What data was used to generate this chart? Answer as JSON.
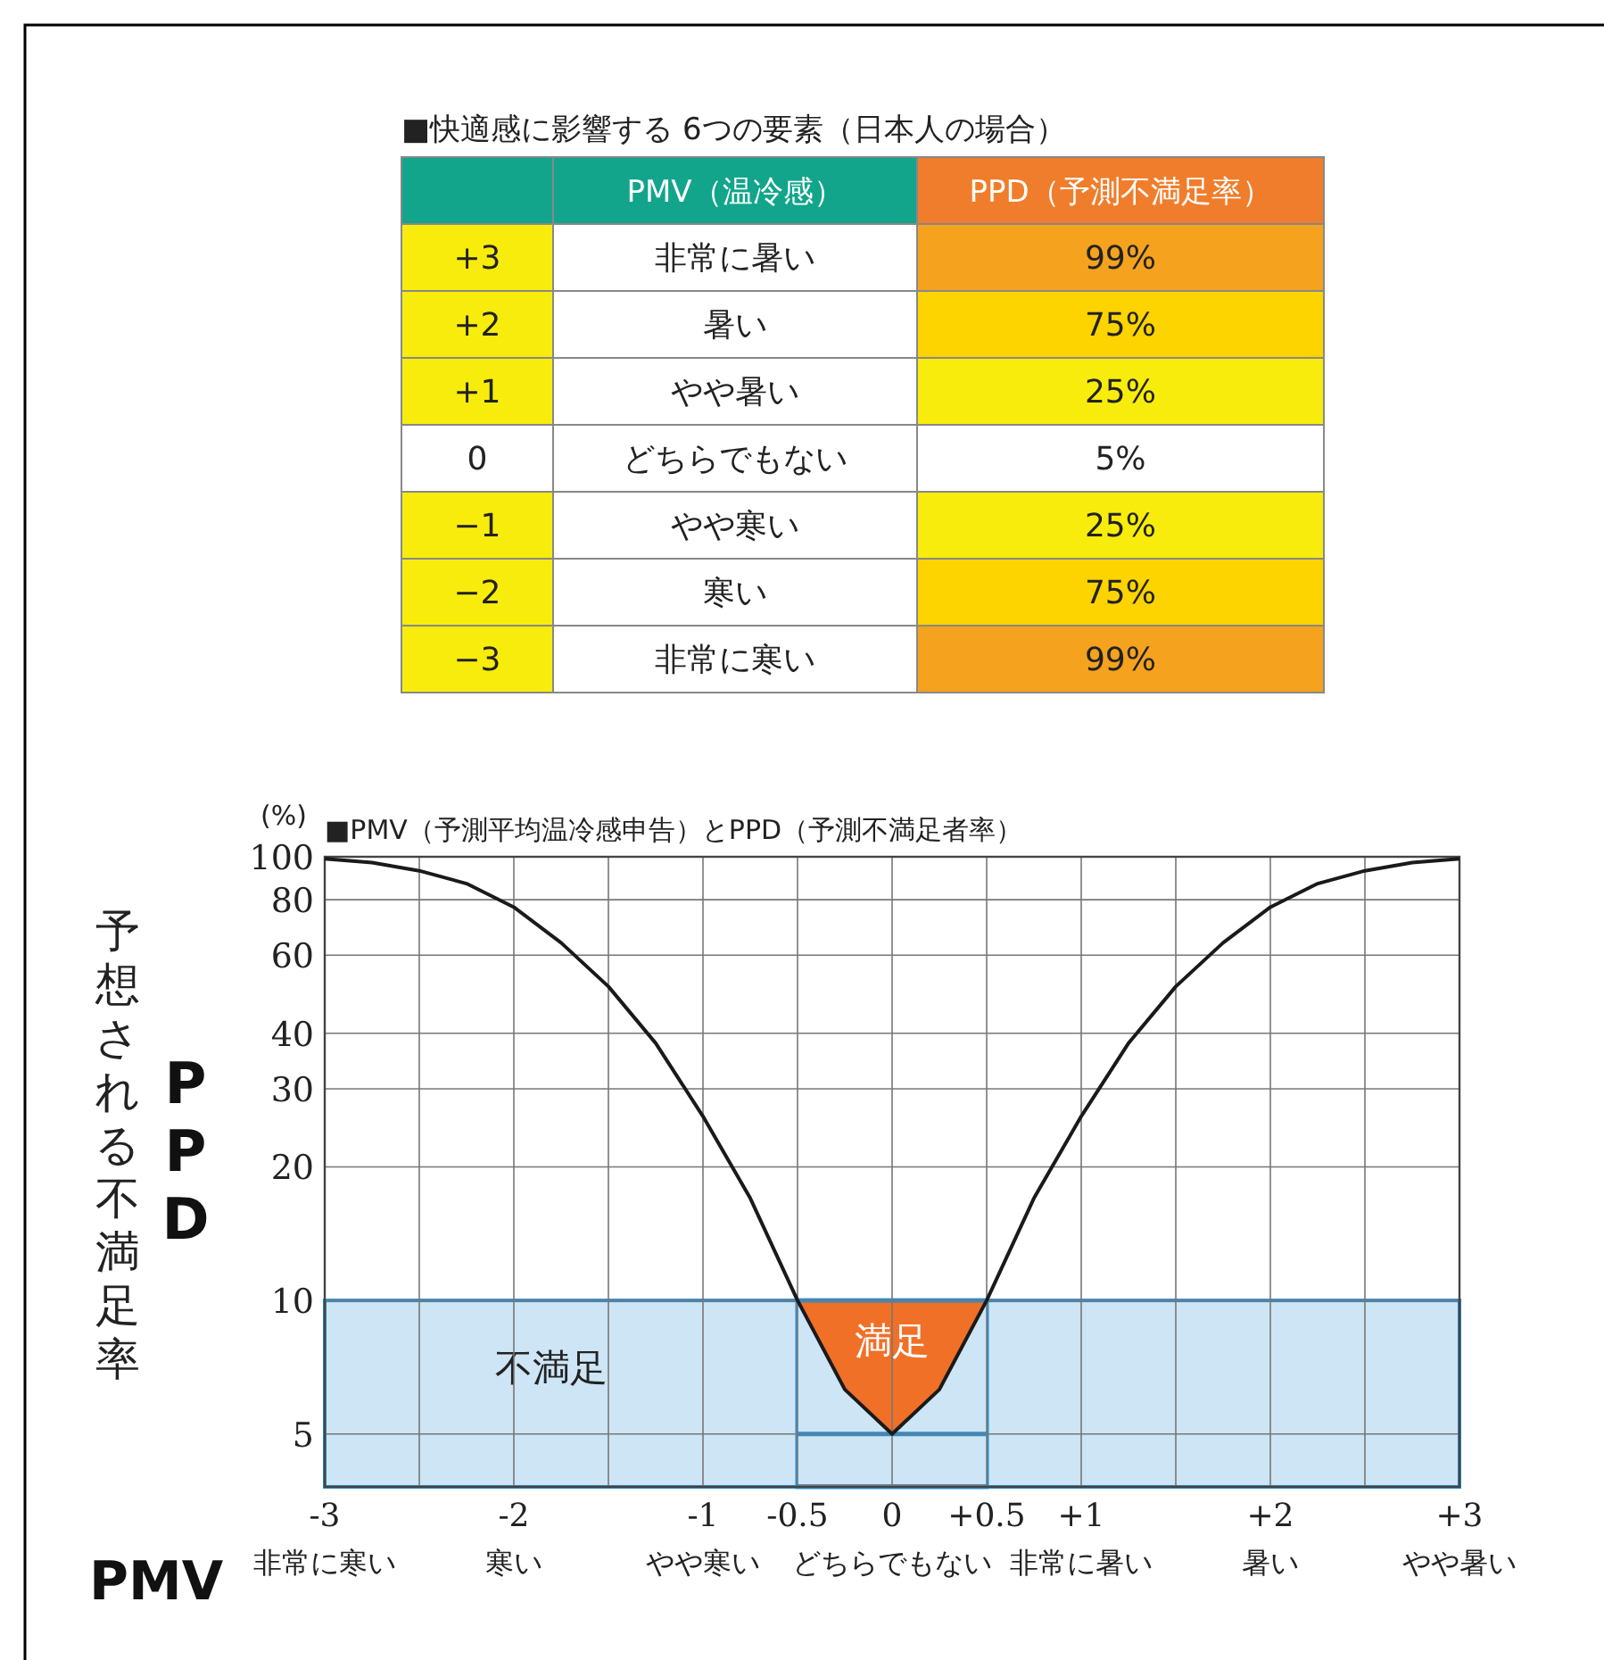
{
  "chart_data": [
    {
      "type": "heatmap",
      "title": "■快適感に影響する 6つの要素（日本人の場合）",
      "categories": [
        "PMV（温冷感）",
        "PPD（予測不満足率）"
      ],
      "y_categories": [
        "+3",
        "+2",
        "+1",
        "0",
        "−1",
        "−2",
        "−3"
      ],
      "cells": [
        [
          null,
          99
        ],
        [
          null,
          75
        ],
        [
          null,
          25
        ],
        [
          null,
          5
        ],
        [
          null,
          25
        ],
        [
          null,
          75
        ],
        [
          null,
          99
        ]
      ],
      "cell_labels": [
        [
          "非常に暑い",
          "99%"
        ],
        [
          "暑い",
          "75%"
        ],
        [
          "やや暑い",
          "25%"
        ],
        [
          "どちらでもない",
          "5%"
        ],
        [
          "やや寒い",
          "25%"
        ],
        [
          "寒い",
          "75%"
        ],
        [
          "非常に寒い",
          "99%"
        ]
      ]
    },
    {
      "type": "line",
      "title": "■PMV（予測平均温冷感申告）とPPD（予測不満足者率）",
      "xlabel": "PMV",
      "ylabel": "予想される不満足率",
      "color": "#1a1a1a",
      "x": [
        -3,
        -2.75,
        -2.5,
        -2.25,
        -2,
        -1.75,
        -1.5,
        -1.25,
        -1,
        -0.75,
        -0.5,
        -0.25,
        0,
        0.25,
        0.5,
        0.75,
        1,
        1.25,
        1.5,
        1.75,
        2,
        2.25,
        2.5,
        2.75,
        3
      ],
      "values": [
        99,
        97,
        93,
        87,
        77,
        64,
        51,
        38,
        26,
        17,
        10,
        6.3,
        5,
        6.3,
        10,
        17,
        26,
        38,
        51,
        64,
        77,
        87,
        93,
        97,
        99
      ],
      "xlim": [
        -3,
        3
      ],
      "ylim": [
        3.8,
        100
      ],
      "log": true,
      "grid": true,
      "xticks": [
        {
          "value": -3,
          "label": "-3"
        },
        {
          "value": -2,
          "label": "-2"
        },
        {
          "value": -1,
          "label": "-1"
        },
        {
          "value": -0.5,
          "label": "-0.5"
        },
        0,
        {
          "value": 0.5,
          "label": "+0.5"
        },
        {
          "value": 1,
          "label": "+1"
        },
        {
          "value": 2,
          "label": "+2"
        },
        {
          "value": 3,
          "label": "+3"
        }
      ],
      "yticks": [
        5,
        10,
        20,
        30,
        40,
        60,
        80,
        100
      ],
      "bands": [
        {
          "axis": "y",
          "from": 3.8,
          "to": 10,
          "label": "不満足",
          "color": "#cde5f5"
        },
        {
          "axis": "x",
          "from": -0.5,
          "to": 0.5,
          "label": "満足",
          "color": "#f07028"
        }
      ],
      "annotations": [
        "(%)",
        "PPD",
        "非常に寒い",
        "寒い",
        "やや寒い",
        "どちらでもない",
        "非常に暑い",
        "暑い",
        "やや暑い"
      ]
    }
  ]
}
